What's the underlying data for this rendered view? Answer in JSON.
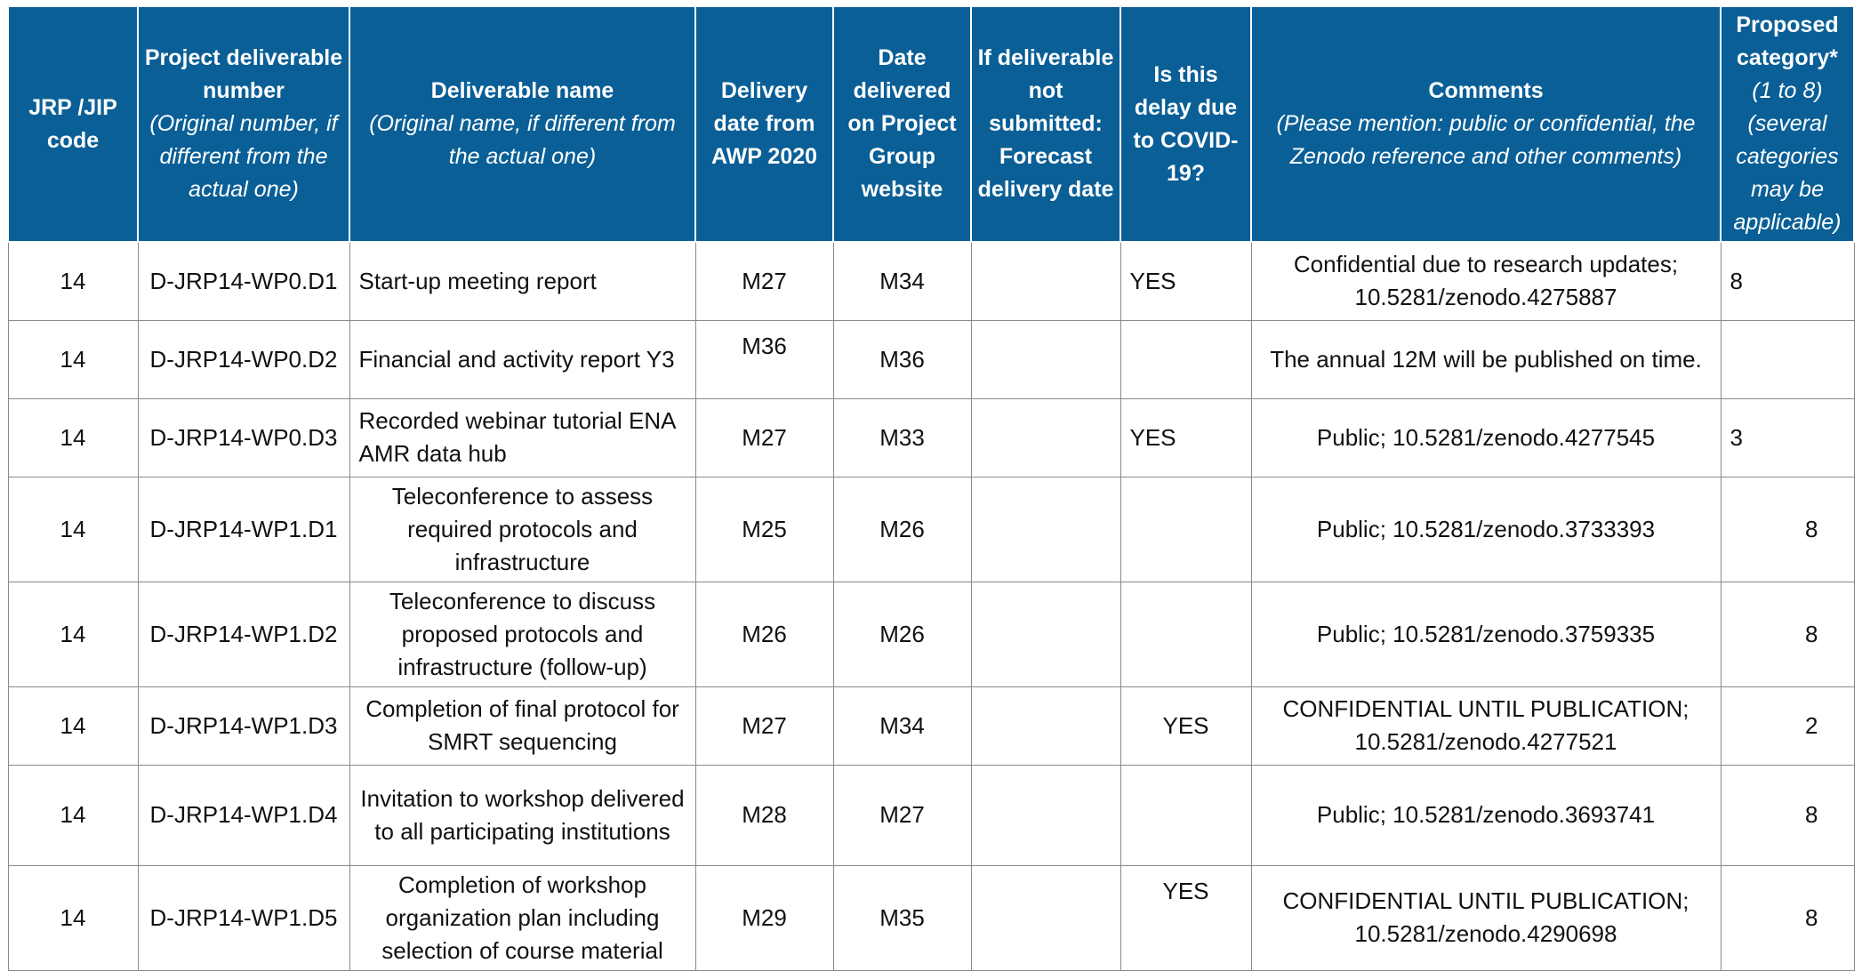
{
  "headers": {
    "code": "JRP /JIP code",
    "number_main": "Project deliverable number",
    "number_note": "(Original number, if different from the actual one)",
    "name_main": "Deliverable name",
    "name_note": "(Original name, if different from the actual one)",
    "delivery": "Delivery date from AWP 2020",
    "delivered": "Date delivered on Project Group website",
    "forecast": "If deliverable not submitted: Forecast delivery date",
    "covid": "Is this delay due to COVID-19?",
    "comments_main": "Comments",
    "comments_note": "(Please mention: public or confidential, the Zenodo reference and other comments)",
    "category_main": "Proposed category*",
    "category_note": "(1 to 8) (several categories may be applicable)"
  },
  "rows": [
    {
      "code": "14",
      "number": "D-JRP14-WP0.D1",
      "name": "Start-up meeting report",
      "delivery": "M27",
      "delivered": "M34",
      "forecast": "",
      "covid": "YES",
      "comments": "Confidential due to research updates; 10.5281/zenodo.4275887",
      "category": "8"
    },
    {
      "code": "14",
      "number": "D-JRP14-WP0.D2",
      "name": "Financial and activity report Y3",
      "delivery": "M36",
      "delivered": "M36",
      "forecast": "",
      "covid": "",
      "comments": "The annual 12M will be published on time.",
      "category": ""
    },
    {
      "code": "14",
      "number": "D-JRP14-WP0.D3",
      "name": "Recorded webinar tutorial ENA AMR data hub",
      "delivery": "M27",
      "delivered": "M33",
      "forecast": "",
      "covid": "YES",
      "comments": "Public; 10.5281/zenodo.4277545",
      "category": "3"
    },
    {
      "code": "14",
      "number": "D-JRP14-WP1.D1",
      "name": "Teleconference to assess required protocols and infrastructure",
      "delivery": "M25",
      "delivered": "M26",
      "forecast": "",
      "covid": "",
      "comments": "Public; 10.5281/zenodo.3733393",
      "category": "8"
    },
    {
      "code": "14",
      "number": "D-JRP14-WP1.D2",
      "name": "Teleconference to discuss proposed protocols and infrastructure (follow-up)",
      "delivery": "M26",
      "delivered": "M26",
      "forecast": "",
      "covid": "",
      "comments": "Public; 10.5281/zenodo.3759335",
      "category": "8"
    },
    {
      "code": "14",
      "number": "D-JRP14-WP1.D3",
      "name": "Completion of final protocol for SMRT sequencing",
      "delivery": "M27",
      "delivered": "M34",
      "forecast": "",
      "covid": "YES",
      "comments": "CONFIDENTIAL UNTIL PUBLICATION; 10.5281/zenodo.4277521",
      "category": "2"
    },
    {
      "code": "14",
      "number": "D-JRP14-WP1.D4",
      "name": "Invitation to workshop delivered to all participating institutions",
      "delivery": "M28",
      "delivered": "M27",
      "forecast": "",
      "covid": "",
      "comments": "Public; 10.5281/zenodo.3693741",
      "category": "8"
    },
    {
      "code": "14",
      "number": "D-JRP14-WP1.D5",
      "name": "Completion of workshop organization plan including selection of course material",
      "delivery": "M29",
      "delivered": "M35",
      "forecast": "",
      "covid": "YES",
      "comments": "CONFIDENTIAL UNTIL PUBLICATION; 10.5281/zenodo.4290698",
      "category": "8"
    }
  ]
}
